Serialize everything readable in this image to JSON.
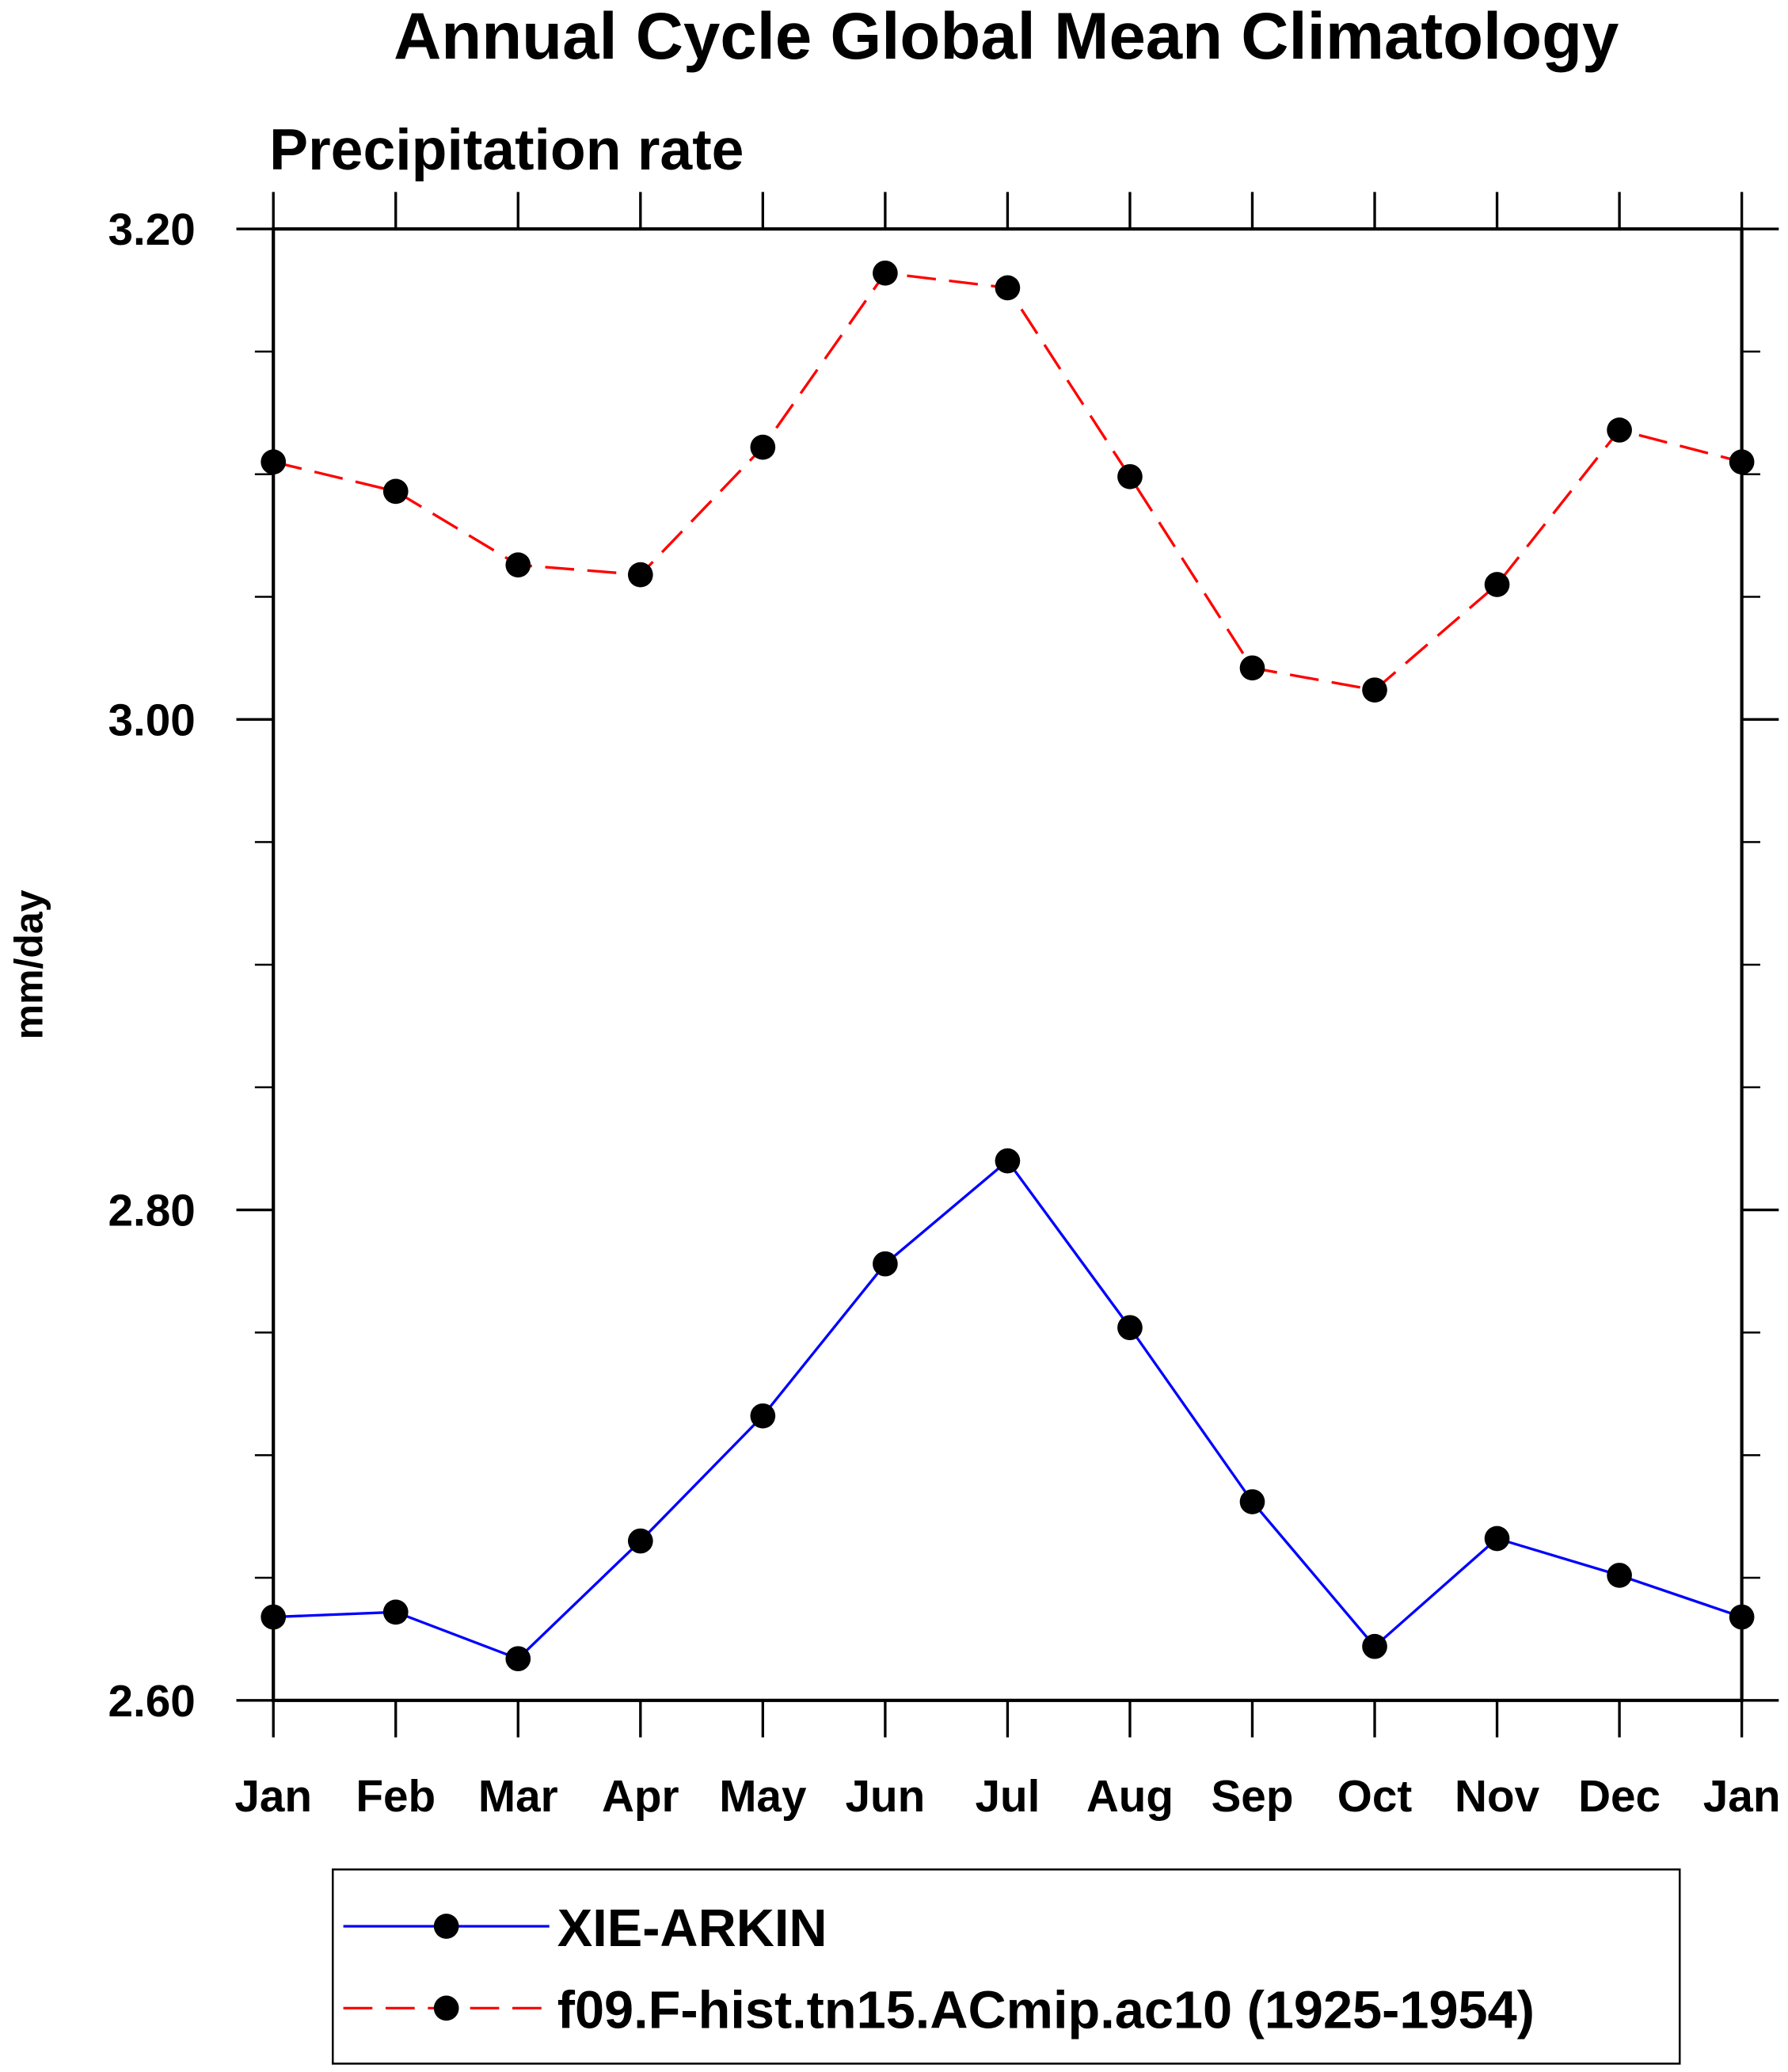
{
  "chart_data": {
    "type": "line",
    "title": "Annual Cycle Global Mean Climatology",
    "subtitle": "Precipitation rate",
    "xlabel": "",
    "ylabel": "mm/day",
    "ylim": [
      2.6,
      3.2
    ],
    "yticks": [
      "2.60",
      "2.80",
      "3.00",
      "3.20"
    ],
    "ytick_values": [
      2.6,
      2.8,
      3.0,
      3.2
    ],
    "yminor_step": 0.05,
    "categories": [
      "Jan",
      "Feb",
      "Mar",
      "Apr",
      "May",
      "Jun",
      "Jul",
      "Aug",
      "Sep",
      "Oct",
      "Nov",
      "Dec",
      "Jan"
    ],
    "legend_placement": "bottom",
    "series": [
      {
        "name": "XIE-ARKIN",
        "color": "#0000ff",
        "dash": "solid",
        "values": [
          2.634,
          2.636,
          2.617,
          2.665,
          2.716,
          2.778,
          2.82,
          2.752,
          2.681,
          2.622,
          2.666,
          2.651,
          2.634
        ]
      },
      {
        "name": "f09.F-hist.tn15.ACmip.ac10 (1925-1954)",
        "color": "#ff0000",
        "dash": "dashed",
        "values": [
          3.105,
          3.093,
          3.063,
          3.059,
          3.111,
          3.182,
          3.176,
          3.099,
          3.021,
          3.012,
          3.055,
          3.118,
          3.105
        ]
      }
    ]
  }
}
